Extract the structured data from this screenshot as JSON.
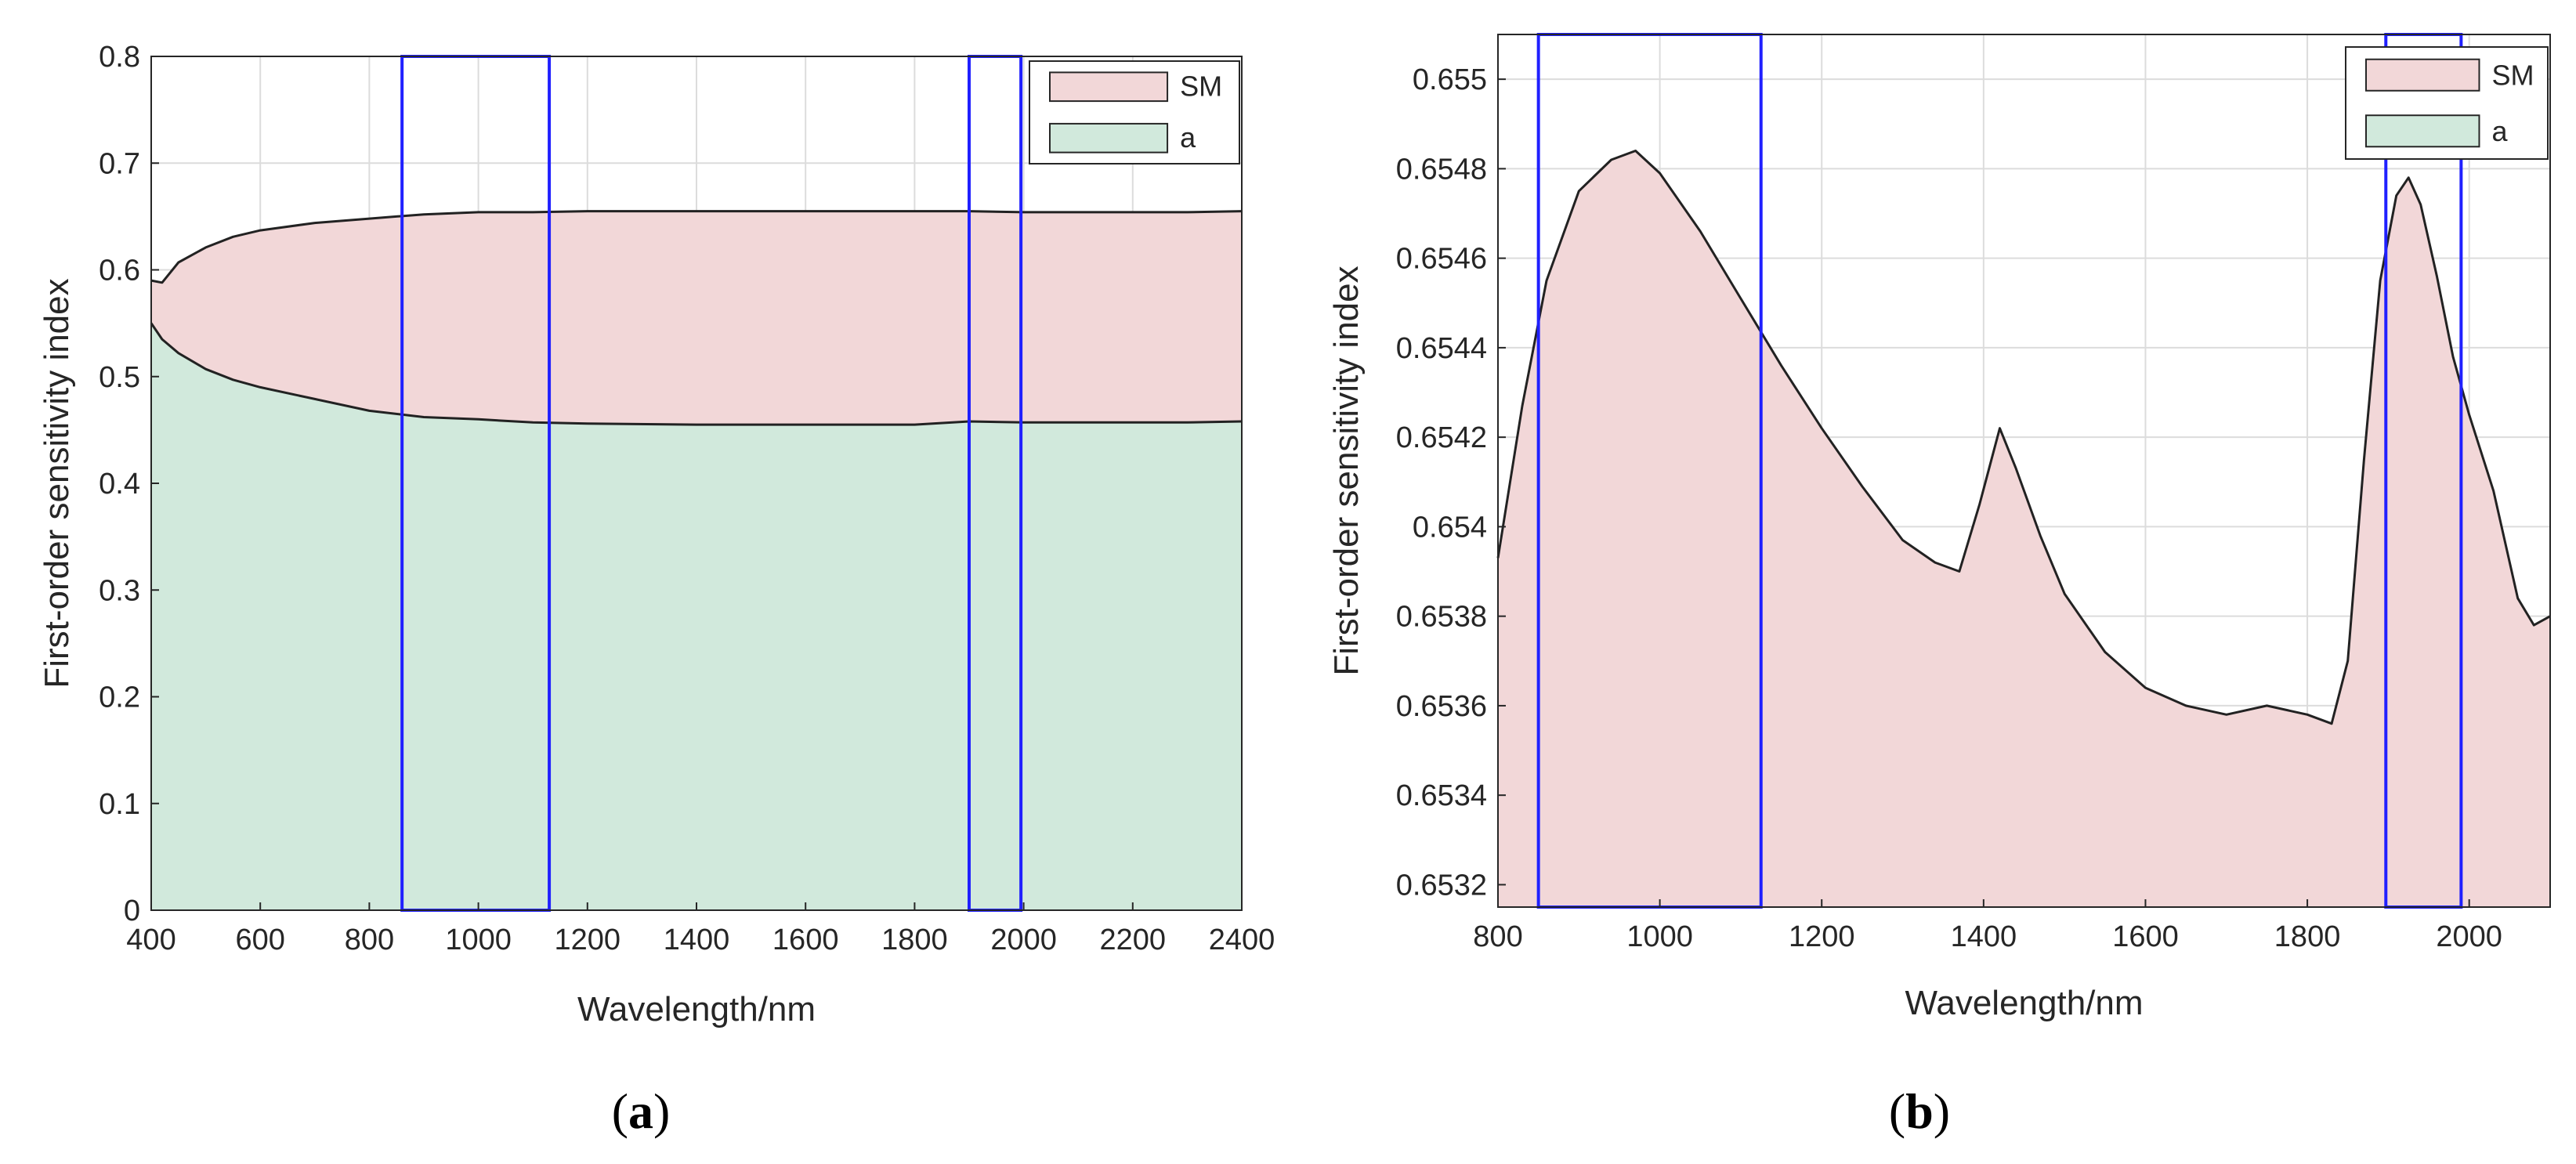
{
  "colors": {
    "sm_fill": "#f2d7d8",
    "a_fill": "#d1e9dc",
    "curve": "#222222",
    "highlight": "#2020ff",
    "grid": "#dcdcdc",
    "axis": "#262626"
  },
  "chart_data": [
    {
      "type": "area",
      "panel": "(a)",
      "caption_open": "(",
      "caption_letter": "a",
      "caption_close": ")",
      "title": "",
      "xlabel": "Wavelength/nm",
      "ylabel": "First-order sensitivity index",
      "xlim": [
        400,
        2400
      ],
      "ylim": [
        0,
        0.8
      ],
      "grid": true,
      "legend_position": "top-right",
      "xticks": [
        400,
        600,
        800,
        1000,
        1200,
        1400,
        1600,
        1800,
        2000,
        2200,
        2400
      ],
      "xtick_labels": [
        "400",
        "600",
        "800",
        "1000",
        "1200",
        "1400",
        "1600",
        "1800",
        "2000",
        "2200",
        "2400"
      ],
      "yticks": [
        0,
        0.1,
        0.2,
        0.3,
        0.4,
        0.5,
        0.6,
        0.7,
        0.8
      ],
      "ytick_labels": [
        "0",
        "0.1",
        "0.2",
        "0.3",
        "0.4",
        "0.5",
        "0.6",
        "0.7",
        "0.8"
      ],
      "series": [
        {
          "name": "SM",
          "x": [
            400,
            420,
            450,
            500,
            550,
            600,
            700,
            800,
            900,
            1000,
            1100,
            1200,
            1400,
            1600,
            1800,
            1900,
            2000,
            2100,
            2200,
            2300,
            2400
          ],
          "values": [
            0.04,
            0.053,
            0.085,
            0.114,
            0.134,
            0.147,
            0.165,
            0.18,
            0.19,
            0.194,
            0.197,
            0.199,
            0.2,
            0.2,
            0.2,
            0.197,
            0.197,
            0.197,
            0.197,
            0.197,
            0.197
          ]
        },
        {
          "name": "a",
          "x": [
            400,
            420,
            450,
            500,
            550,
            600,
            700,
            800,
            900,
            1000,
            1100,
            1200,
            1400,
            1600,
            1800,
            1900,
            2000,
            2100,
            2200,
            2300,
            2400
          ],
          "values": [
            0.55,
            0.535,
            0.522,
            0.507,
            0.497,
            0.49,
            0.479,
            0.468,
            0.462,
            0.46,
            0.457,
            0.456,
            0.455,
            0.455,
            0.455,
            0.458,
            0.457,
            0.457,
            0.457,
            0.457,
            0.458
          ]
        }
      ],
      "highlight_regions": [
        [
          860,
          1130
        ],
        [
          1900,
          1995
        ]
      ]
    },
    {
      "type": "area",
      "panel": "(b)",
      "caption_open": "(",
      "caption_letter": "b",
      "caption_close": ")",
      "title": "",
      "xlabel": "Wavelength/nm",
      "ylabel": "First-order sensitivity index",
      "xlim": [
        800,
        2100
      ],
      "ylim": [
        0.65315,
        0.6551
      ],
      "grid": true,
      "legend_position": "top-right",
      "xticks": [
        800,
        1000,
        1200,
        1400,
        1600,
        1800,
        2000
      ],
      "xtick_labels": [
        "800",
        "1000",
        "1200",
        "1400",
        "1600",
        "1800",
        "2000"
      ],
      "yticks": [
        0.6532,
        0.6534,
        0.6536,
        0.6538,
        0.654,
        0.6542,
        0.6544,
        0.6546,
        0.6548,
        0.655
      ],
      "ytick_labels": [
        "0.6532",
        "0.6534",
        "0.6536",
        "0.6538",
        "0.654",
        "0.6542",
        "0.6544",
        "0.6546",
        "0.6548",
        "0.655"
      ],
      "series": [
        {
          "name": "SM",
          "x": [
            800,
            830,
            860,
            900,
            940,
            970,
            1000,
            1050,
            1100,
            1150,
            1200,
            1250,
            1300,
            1340,
            1370,
            1395,
            1420,
            1440,
            1470,
            1500,
            1550,
            1600,
            1650,
            1700,
            1750,
            1800,
            1830,
            1850,
            1870,
            1890,
            1910,
            1925,
            1940,
            1960,
            1980,
            2000,
            2030,
            2060,
            2080,
            2100
          ],
          "values": [
            0.65393,
            0.65427,
            0.65455,
            0.65475,
            0.65482,
            0.65484,
            0.65479,
            0.65466,
            0.65451,
            0.65436,
            0.65422,
            0.65409,
            0.65397,
            0.65392,
            0.6539,
            0.65405,
            0.65422,
            0.65413,
            0.65398,
            0.65385,
            0.65372,
            0.65364,
            0.6536,
            0.65358,
            0.6536,
            0.65358,
            0.65356,
            0.6537,
            0.65415,
            0.65455,
            0.65474,
            0.65478,
            0.65472,
            0.65456,
            0.65438,
            0.65425,
            0.65408,
            0.65384,
            0.65378,
            0.6538
          ]
        }
      ],
      "highlight_regions": [
        [
          850,
          1125
        ],
        [
          1897,
          1990
        ]
      ]
    }
  ]
}
